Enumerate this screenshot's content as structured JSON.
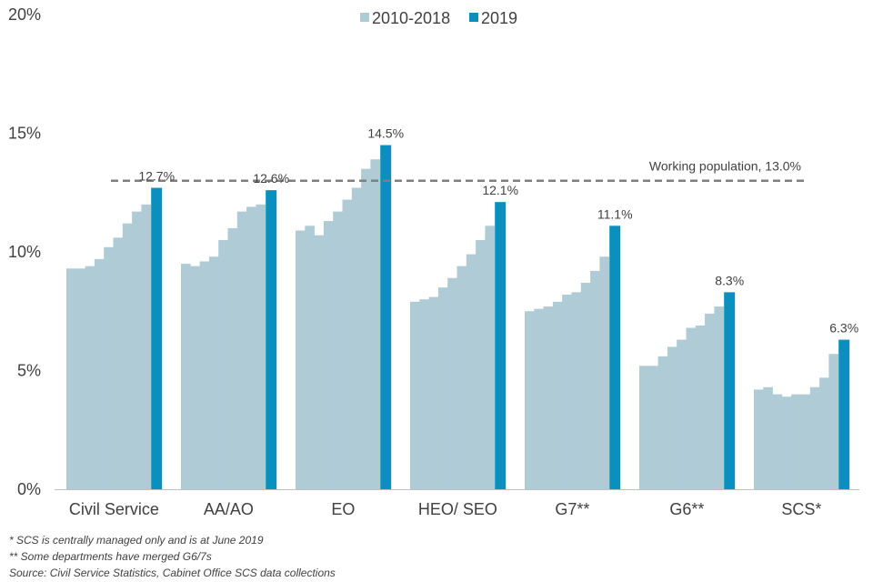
{
  "chart_data": {
    "type": "bar",
    "categories": [
      "Civil Service",
      "AA/AO",
      "EO",
      "HEO/ SEO",
      "G7**",
      "G6**",
      "SCS*"
    ],
    "series": [
      {
        "name": "2010-2018",
        "values": [
          [
            9.3,
            9.3,
            9.4,
            9.7,
            10.2,
            10.6,
            11.2,
            11.7,
            12.0
          ],
          [
            9.5,
            9.4,
            9.6,
            9.8,
            10.5,
            11.0,
            11.7,
            11.9,
            12.0
          ],
          [
            10.9,
            11.1,
            10.7,
            11.3,
            11.7,
            12.2,
            12.7,
            13.5,
            13.9
          ],
          [
            7.9,
            8.0,
            8.1,
            8.5,
            8.9,
            9.4,
            9.9,
            10.5,
            11.1
          ],
          [
            7.5,
            7.6,
            7.7,
            7.9,
            8.2,
            8.3,
            8.7,
            9.2,
            9.8
          ],
          [
            5.2,
            5.2,
            5.6,
            6.0,
            6.3,
            6.8,
            6.9,
            7.4,
            7.7
          ],
          [
            4.2,
            4.3,
            4.0,
            3.9,
            4.0,
            4.0,
            4.3,
            4.7,
            5.7
          ]
        ]
      },
      {
        "name": "2019",
        "values": [
          12.7,
          12.6,
          14.5,
          12.1,
          11.1,
          8.3,
          6.3
        ],
        "labels": [
          "12.7%",
          "12.6%",
          "14.5%",
          "12.1%",
          "11.1%",
          "8.3%",
          "6.3%"
        ]
      }
    ],
    "reference_line": {
      "value": 13.0,
      "label": "Working population, 13.0%"
    },
    "yticks": [
      "0%",
      "5%",
      "10%",
      "15%",
      "20%"
    ],
    "ylim": [
      0,
      20
    ],
    "xlabel": "",
    "ylabel": "",
    "legend": "top-center",
    "grid": false,
    "colors": {
      "history": "#aecbd6",
      "current": "#0a8fbf",
      "reference": "#7f7f7f",
      "axis": "#bfbfbf"
    }
  },
  "legend": {
    "history_label": "2010-2018",
    "current_label": "2019"
  },
  "notes": [
    "* SCS is centrally managed only and is at June 2019",
    "** Some departments have merged G6/7s",
    "Source: Civil Service Statistics, Cabinet Office SCS data collections"
  ]
}
